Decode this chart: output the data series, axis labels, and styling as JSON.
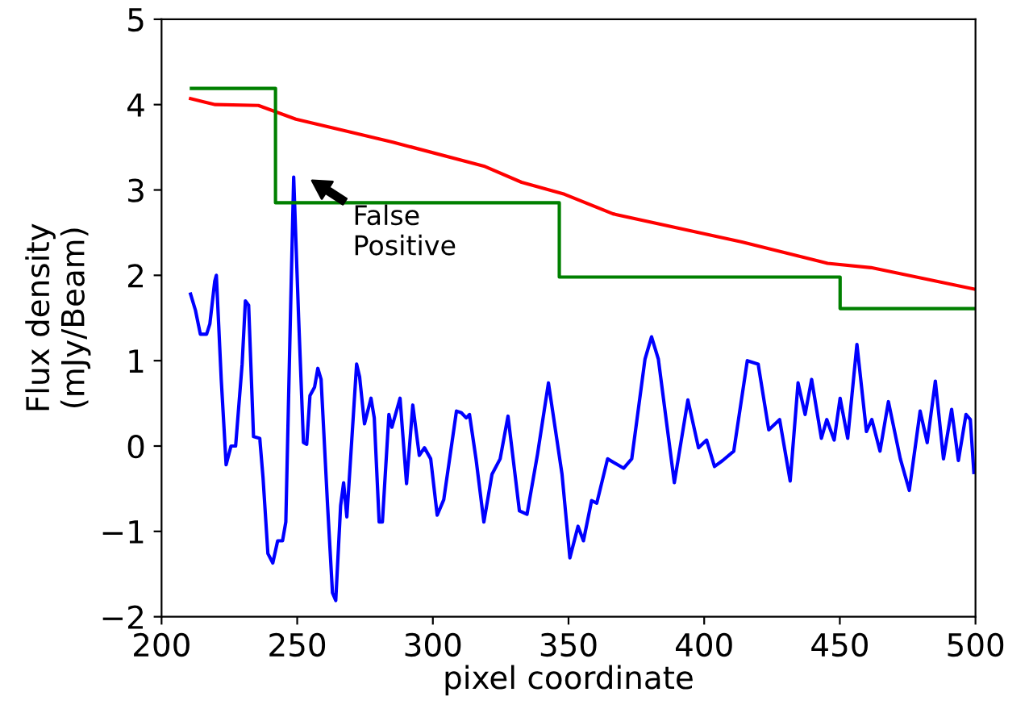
{
  "chart_data": {
    "type": "line",
    "xlabel": "pixel coordinate",
    "ylabel": "Flux density\n(mJy/Beam)",
    "xlim": [
      200,
      500
    ],
    "ylim": [
      -2,
      5
    ],
    "xticks": [
      200,
      250,
      300,
      350,
      400,
      450,
      500
    ],
    "yticks": [
      {
        "value": -2,
        "label": "−2"
      },
      {
        "value": -1,
        "label": "−1"
      },
      0,
      1,
      2,
      3,
      4,
      5
    ],
    "grid": false,
    "series": [
      {
        "color": "#0000ff",
        "x": [
          210.7,
          212.5,
          214.3,
          216.6,
          217.8,
          219.6,
          220.2,
          222,
          223.8,
          225.6,
          227.3,
          229.7,
          230.9,
          232.1,
          233.9,
          236.2,
          237.4,
          239.2,
          241,
          242.8,
          244.6,
          245.8,
          247.5,
          248.7,
          250.5,
          252.3,
          253.5,
          254.7,
          256.4,
          257.6,
          258.8,
          261.2,
          263,
          264.2,
          266,
          267.1,
          268.3,
          271.9,
          273,
          274.8,
          277.2,
          278.4,
          280.2,
          281.4,
          283.8,
          284.9,
          287.9,
          290.3,
          292.6,
          295,
          296.9,
          299.2,
          301.6,
          304,
          308.7,
          310.5,
          312.3,
          313.5,
          315.9,
          318.8,
          321.8,
          324.8,
          327.7,
          331.9,
          334.7,
          338.6,
          342.6,
          347.6,
          350.5,
          353.5,
          355.5,
          358.5,
          360.4,
          364.4,
          370.3,
          373.3,
          378.2,
          380.6,
          383.1,
          389,
          394,
          397.9,
          400.9,
          403.8,
          406.8,
          410.9,
          415.9,
          419.9,
          423.8,
          427.8,
          431.7,
          434.6,
          437.2,
          439.6,
          443.2,
          445.2,
          447.9,
          450.1,
          452.9,
          456.3,
          459.8,
          461.8,
          464.8,
          467.9,
          472.3,
          475.6,
          479.6,
          482.2,
          485.2,
          488.2,
          491.2,
          493.7,
          496.5,
          498.1,
          499.4
        ],
        "values": [
          1.78,
          1.59,
          1.31,
          1.31,
          1.43,
          1.93,
          2.0,
          0.78,
          -0.22,
          0,
          0,
          0.96,
          1.7,
          1.65,
          0.11,
          0.09,
          -0.37,
          -1.26,
          -1.37,
          -1.11,
          -1.11,
          -0.89,
          1.52,
          3.15,
          1.52,
          0.04,
          0.02,
          0.59,
          0.69,
          0.91,
          0.78,
          -0.7,
          -1.72,
          -1.81,
          -0.7,
          -0.43,
          -0.83,
          0.96,
          0.81,
          0.26,
          0.56,
          0.33,
          -0.89,
          -0.89,
          0.37,
          0.22,
          0.56,
          -0.44,
          0.48,
          -0.11,
          -0.02,
          -0.15,
          -0.81,
          -0.63,
          0.41,
          0.39,
          0.33,
          0.37,
          -0.15,
          -0.89,
          -0.33,
          -0.15,
          0.35,
          -0.76,
          -0.8,
          -0.09,
          0.74,
          -0.33,
          -1.31,
          -0.94,
          -1.11,
          -0.64,
          -0.67,
          -0.15,
          -0.26,
          -0.15,
          1.02,
          1.28,
          1.02,
          -0.43,
          0.54,
          -0.02,
          0.07,
          -0.24,
          -0.17,
          -0.06,
          1.0,
          0.96,
          0.19,
          0.31,
          -0.41,
          0.74,
          0.37,
          0.78,
          0.09,
          0.31,
          0.07,
          0.56,
          0.09,
          1.19,
          0.17,
          0.31,
          -0.06,
          0.52,
          -0.15,
          -0.52,
          0.41,
          0.04,
          0.76,
          -0.15,
          0.43,
          -0.17,
          0.37,
          0.31,
          -0.31
        ]
      },
      {
        "color": "#ff0000",
        "x": [
          210.7,
          219.8,
          235.7,
          249.5,
          269.3,
          285.2,
          318.8,
          332.7,
          348.5,
          366.4,
          413.9,
          445.5,
          461.5,
          499.4
        ],
        "values": [
          4.07,
          4.0,
          3.99,
          3.83,
          3.68,
          3.56,
          3.28,
          3.09,
          2.95,
          2.72,
          2.39,
          2.14,
          2.09,
          1.84
        ]
      },
      {
        "type": "step",
        "color": "#008000",
        "x": [
          211,
          242,
          346.6,
          450.1,
          500
        ],
        "values": [
          4.19,
          2.85,
          1.98,
          1.61,
          1.61
        ]
      }
    ],
    "annotations": [
      "False\nPositive"
    ]
  }
}
